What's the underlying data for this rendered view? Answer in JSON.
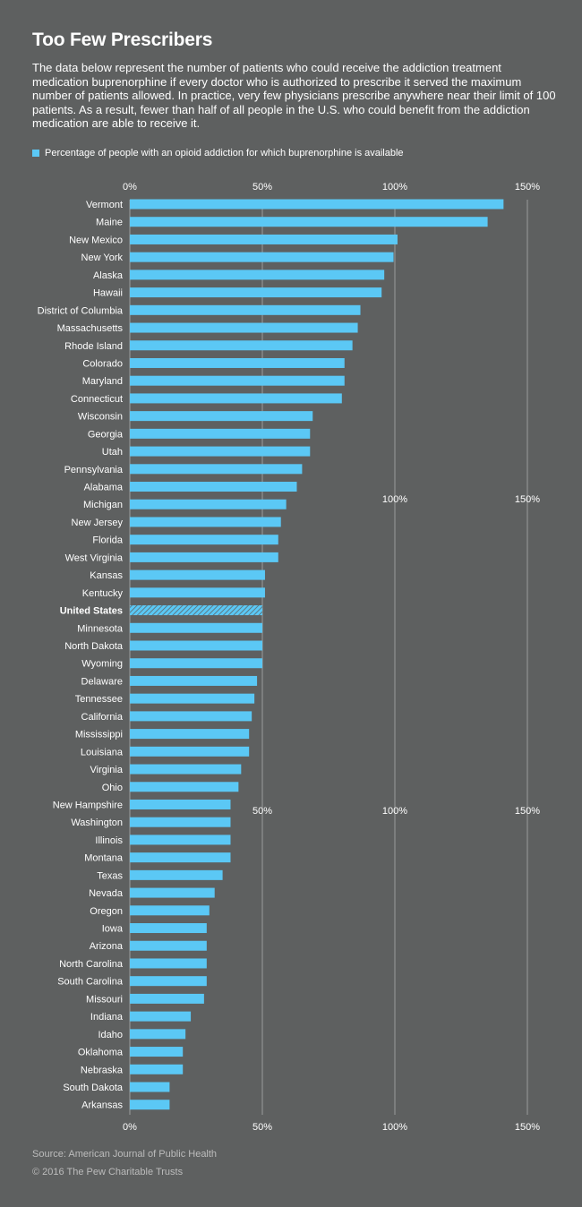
{
  "header": {
    "title": "Too Few Prescribers",
    "description": "The data below represent the number of patients who could receive the addiction treatment medication buprenorphine if every doctor who is authorized to prescribe it served the maximum number of patients allowed. In practice, very few physicians prescribe anywhere near their limit of 100 patients. As a result, fewer than half of all people in the U.S. who could benefit from the addiction medication are able to receive it."
  },
  "legend": {
    "label": "Percentage of people with an opioid addiction for which buprenorphine is available"
  },
  "footer": {
    "source": "Source: American Journal of Public Health",
    "copyright": "© 2016 The Pew Charitable Trusts"
  },
  "colors": {
    "bar": "#5bc8f5",
    "grid": "#9a9c9c",
    "background": "#5e6060"
  },
  "chart_data": {
    "type": "bar",
    "orientation": "horizontal",
    "xlim": [
      0,
      150
    ],
    "ticks": [
      0,
      50,
      100,
      150
    ],
    "tick_labels": [
      "0%",
      "50%",
      "100%",
      "150%"
    ],
    "grid": true,
    "highlight_category": "United States",
    "categories": [
      "Vermont",
      "Maine",
      "New Mexico",
      "New York",
      "Alaska",
      "Hawaii",
      "District of Columbia",
      "Massachusetts",
      "Rhode Island",
      "Colorado",
      "Maryland",
      "Connecticut",
      "Wisconsin",
      "Georgia",
      "Utah",
      "Pennsylvania",
      "Alabama",
      "Michigan",
      "New Jersey",
      "Florida",
      "West Virginia",
      "Kansas",
      "Kentucky",
      "United States",
      "Minnesota",
      "North Dakota",
      "Wyoming",
      "Delaware",
      "Tennessee",
      "California",
      "Mississippi",
      "Louisiana",
      "Virginia",
      "Ohio",
      "New Hampshire",
      "Washington",
      "Illinois",
      "Montana",
      "Texas",
      "Nevada",
      "Oregon",
      "Iowa",
      "Arizona",
      "North Carolina",
      "South Carolina",
      "Missouri",
      "Indiana",
      "Idaho",
      "Oklahoma",
      "Nebraska",
      "South Dakota",
      "Arkansas"
    ],
    "series": [
      {
        "values": [
          141,
          135,
          101,
          99.5,
          96,
          95,
          87,
          86,
          84,
          81,
          81,
          80,
          69,
          68,
          68,
          65,
          63,
          59,
          57,
          56,
          56,
          51,
          51,
          50,
          50,
          50,
          50,
          48,
          47,
          46,
          45,
          45,
          42,
          41,
          38,
          38,
          38,
          38,
          35,
          32,
          30,
          29,
          29,
          29,
          29,
          28,
          23,
          21,
          20,
          20,
          15,
          15
        ]
      }
    ]
  }
}
